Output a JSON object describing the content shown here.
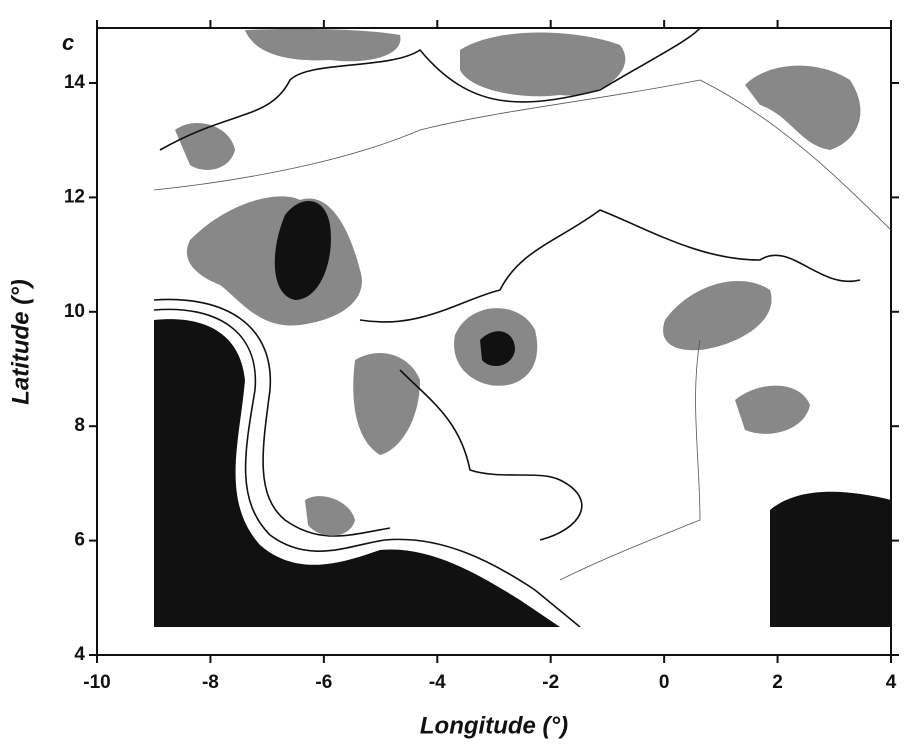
{
  "chart_data": {
    "type": "contour",
    "panel_label": "c",
    "xlabel": "Longitude (°)",
    "ylabel": "Latitude (°)",
    "xlim": [
      -10,
      4
    ],
    "ylim": [
      4,
      15
    ],
    "xticks": [
      -10,
      -8,
      -6,
      -4,
      -2,
      0,
      2,
      4
    ],
    "yticks": [
      4,
      6,
      8,
      10,
      12,
      14
    ]
  }
}
